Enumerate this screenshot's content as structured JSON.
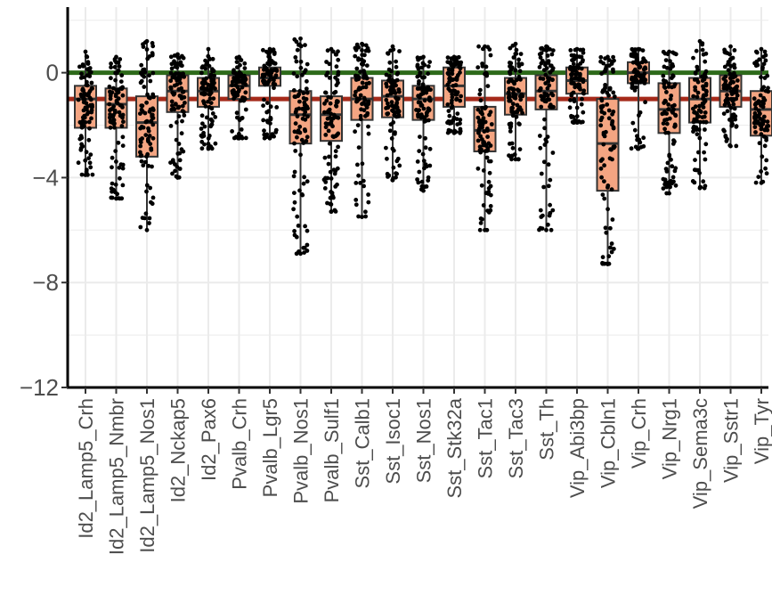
{
  "chart_data": {
    "type": "box",
    "title": "",
    "xlabel": "",
    "ylabel": "",
    "ylim": [
      -12,
      2.5
    ],
    "y_ticks": [
      0,
      -4,
      -8,
      -12
    ],
    "y_tick_labels": [
      "0",
      "−4",
      "−8",
      "−12"
    ],
    "grid": true,
    "legend": "none",
    "colors": {
      "box_fill": "#f4a582",
      "box_stroke": "#333333",
      "points": "#000000",
      "line_zero": "#2d6a1a",
      "line_neg1": "#a52a1a",
      "grid": "#ebebeb"
    },
    "hlines": [
      {
        "y": 0,
        "color": "#2d6a1a"
      },
      {
        "y": -1,
        "color": "#a52a1a"
      }
    ],
    "categories": [
      "Id2_Lamp5_Crh",
      "Id2_Lamp5_Nmbr",
      "Id2_Lamp5_Nos1",
      "Id2_Nckap5",
      "Id2_Pax6",
      "Pvalb_Crh",
      "Pvalb_Lgr5",
      "Pvalb_Nos1",
      "Pvalb_Sulf1",
      "Sst_Calb1",
      "Sst_Isoc1",
      "Sst_Nos1",
      "Sst_Stk32a",
      "Sst_Tac1",
      "Sst_Tac3",
      "Sst_Th",
      "Vip_Abi3bp",
      "Vip_Cbln1",
      "Vip_Crh",
      "Vip_Nrg1",
      "Vip_Sema3c",
      "Vip_Sstr1",
      "Vip_Tyr"
    ],
    "boxes": [
      {
        "q1": -2.1,
        "median": -1.0,
        "q3": -0.5,
        "wmin": -3.9,
        "wmax": 0.8
      },
      {
        "q1": -2.1,
        "median": -1.2,
        "q3": -0.6,
        "wmin": -4.8,
        "wmax": 0.6
      },
      {
        "q1": -3.2,
        "median": -1.9,
        "q3": -0.9,
        "wmin": -6.0,
        "wmax": 1.2
      },
      {
        "q1": -1.5,
        "median": -0.7,
        "q3": -0.1,
        "wmin": -4.0,
        "wmax": 0.7
      },
      {
        "q1": -1.3,
        "median": -0.7,
        "q3": -0.2,
        "wmin": -2.9,
        "wmax": 0.9
      },
      {
        "q1": -1.0,
        "median": -0.5,
        "q3": -0.1,
        "wmin": -2.5,
        "wmax": 0.6
      },
      {
        "q1": -0.5,
        "median": -0.2,
        "q3": 0.2,
        "wmin": -2.5,
        "wmax": 0.9
      },
      {
        "q1": -2.7,
        "median": -1.6,
        "q3": -0.7,
        "wmin": -6.9,
        "wmax": 1.3
      },
      {
        "q1": -2.6,
        "median": -1.6,
        "q3": -0.9,
        "wmin": -5.3,
        "wmax": 0.9
      },
      {
        "q1": -1.8,
        "median": -1.0,
        "q3": -0.2,
        "wmin": -5.5,
        "wmax": 1.1
      },
      {
        "q1": -1.7,
        "median": -0.9,
        "q3": -0.3,
        "wmin": -4.1,
        "wmax": 1.0
      },
      {
        "q1": -1.8,
        "median": -1.0,
        "q3": -0.5,
        "wmin": -4.5,
        "wmax": 0.6
      },
      {
        "q1": -1.3,
        "median": -0.5,
        "q3": 0.2,
        "wmin": -2.3,
        "wmax": 0.6
      },
      {
        "q1": -3.0,
        "median": -2.2,
        "q3": -1.3,
        "wmin": -6.0,
        "wmax": 1.0
      },
      {
        "q1": -1.6,
        "median": -0.8,
        "q3": -0.2,
        "wmin": -3.3,
        "wmax": 1.1
      },
      {
        "q1": -1.4,
        "median": -0.7,
        "q3": -0.1,
        "wmin": -6.0,
        "wmax": 1.0
      },
      {
        "q1": -0.8,
        "median": -0.3,
        "q3": 0.2,
        "wmin": -1.9,
        "wmax": 0.9
      },
      {
        "q1": -4.5,
        "median": -2.7,
        "q3": -1.0,
        "wmin": -7.3,
        "wmax": 0.6
      },
      {
        "q1": -0.4,
        "median": 0.0,
        "q3": 0.4,
        "wmin": -2.9,
        "wmax": 0.9
      },
      {
        "q1": -2.3,
        "median": -1.4,
        "q3": -0.4,
        "wmin": -4.6,
        "wmax": 0.8
      },
      {
        "q1": -1.9,
        "median": -1.0,
        "q3": -0.2,
        "wmin": -4.4,
        "wmax": 1.2
      },
      {
        "q1": -1.3,
        "median": -0.7,
        "q3": -0.1,
        "wmin": -2.8,
        "wmax": 1.0
      },
      {
        "q1": -2.4,
        "median": -1.4,
        "q3": -0.7,
        "wmin": -4.2,
        "wmax": 0.9
      }
    ]
  }
}
